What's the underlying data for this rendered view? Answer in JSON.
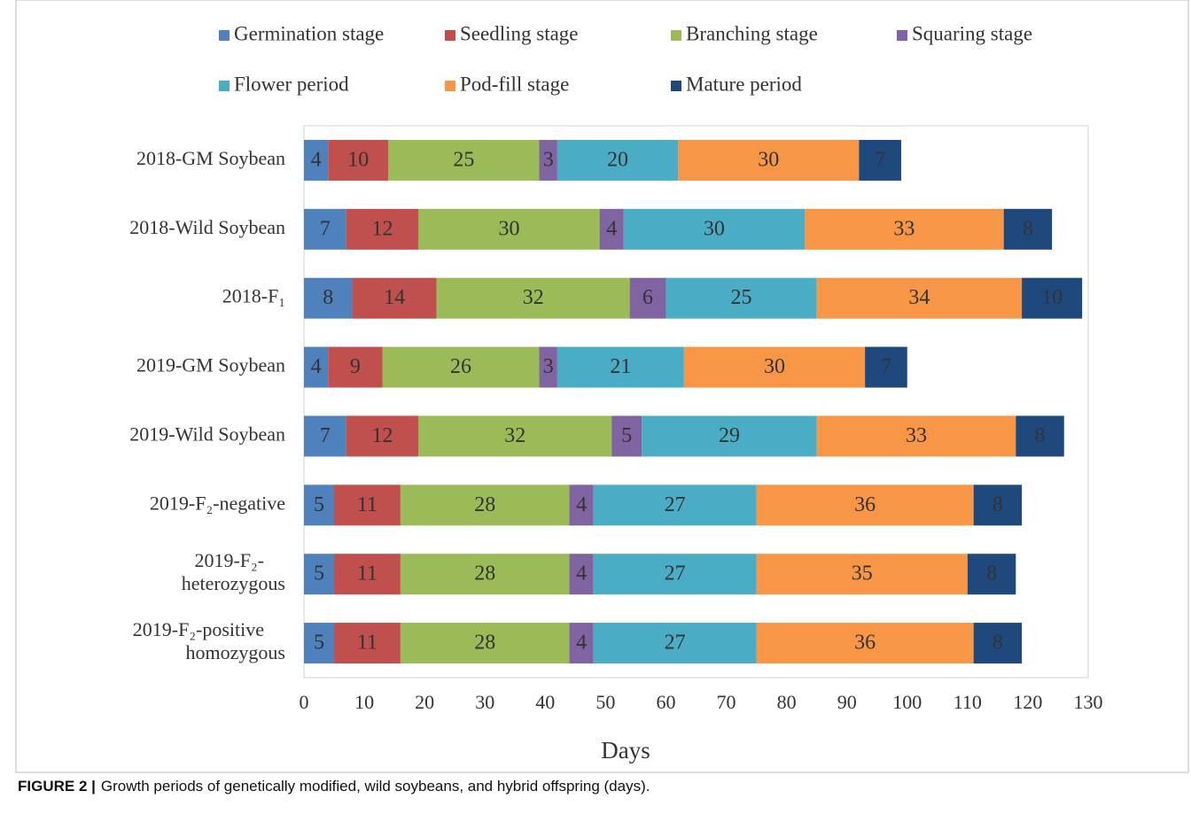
{
  "chart_data": {
    "type": "stacked-barh",
    "categories": [
      "2018-GM Soybean",
      "2018-Wild Soybean",
      "2018-F₁",
      "2019-GM Soybean",
      "2019-Wild Soybean",
      "2019-F₂-negative",
      "2019-F₂-heterozygous",
      "2019-F₂-positive homozygous"
    ],
    "series": [
      {
        "name": "Germination stage",
        "color": "#4f81bd",
        "values": [
          4,
          7,
          8,
          4,
          7,
          5,
          5,
          5
        ]
      },
      {
        "name": "Seedling stage",
        "color": "#c0504d",
        "values": [
          10,
          12,
          14,
          9,
          12,
          11,
          11,
          11
        ]
      },
      {
        "name": "Branching stage",
        "color": "#9bbb59",
        "values": [
          25,
          30,
          32,
          26,
          32,
          28,
          28,
          28
        ]
      },
      {
        "name": "Squaring stage",
        "color": "#8064a2",
        "values": [
          3,
          4,
          6,
          3,
          5,
          4,
          4,
          4
        ]
      },
      {
        "name": "Flower period",
        "color": "#4bacc6",
        "values": [
          20,
          30,
          25,
          21,
          29,
          27,
          27,
          27
        ]
      },
      {
        "name": "Pod-fill stage",
        "color": "#f79646",
        "values": [
          30,
          33,
          34,
          30,
          33,
          36,
          35,
          36
        ]
      },
      {
        "name": "Mature period",
        "color": "#1f497d",
        "values": [
          7,
          8,
          10,
          7,
          8,
          8,
          8,
          8
        ]
      }
    ],
    "xlabel": "Days",
    "xlim": [
      0,
      130
    ],
    "xticks": [
      0,
      10,
      20,
      30,
      40,
      50,
      60,
      70,
      80,
      90,
      100,
      110,
      120,
      130
    ],
    "grid": false
  },
  "caption": {
    "label": "FIGURE 2 |",
    "text": "Growth periods of genetically modified, wild soybeans, and hybrid offspring (days)."
  }
}
